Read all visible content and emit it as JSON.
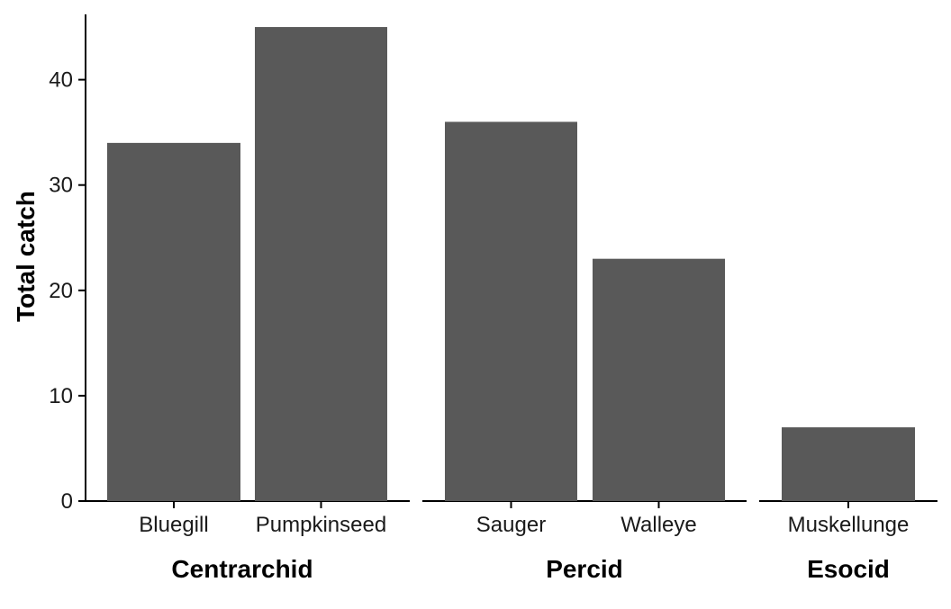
{
  "chart_data": {
    "type": "bar",
    "ylabel": "Total catch",
    "ylim": [
      0,
      46.2
    ],
    "yticks": [
      0,
      10,
      20,
      30,
      40
    ],
    "bar_color": "#595959",
    "grid": false,
    "panels": [
      {
        "group": "Centrarchid",
        "categories": [
          "Bluegill",
          "Pumpkinseed"
        ],
        "values": [
          34,
          45
        ]
      },
      {
        "group": "Percid",
        "categories": [
          "Sauger",
          "Walleye"
        ],
        "values": [
          36,
          23
        ]
      },
      {
        "group": "Esocid",
        "categories": [
          "Muskellunge"
        ],
        "values": [
          7
        ]
      }
    ]
  }
}
